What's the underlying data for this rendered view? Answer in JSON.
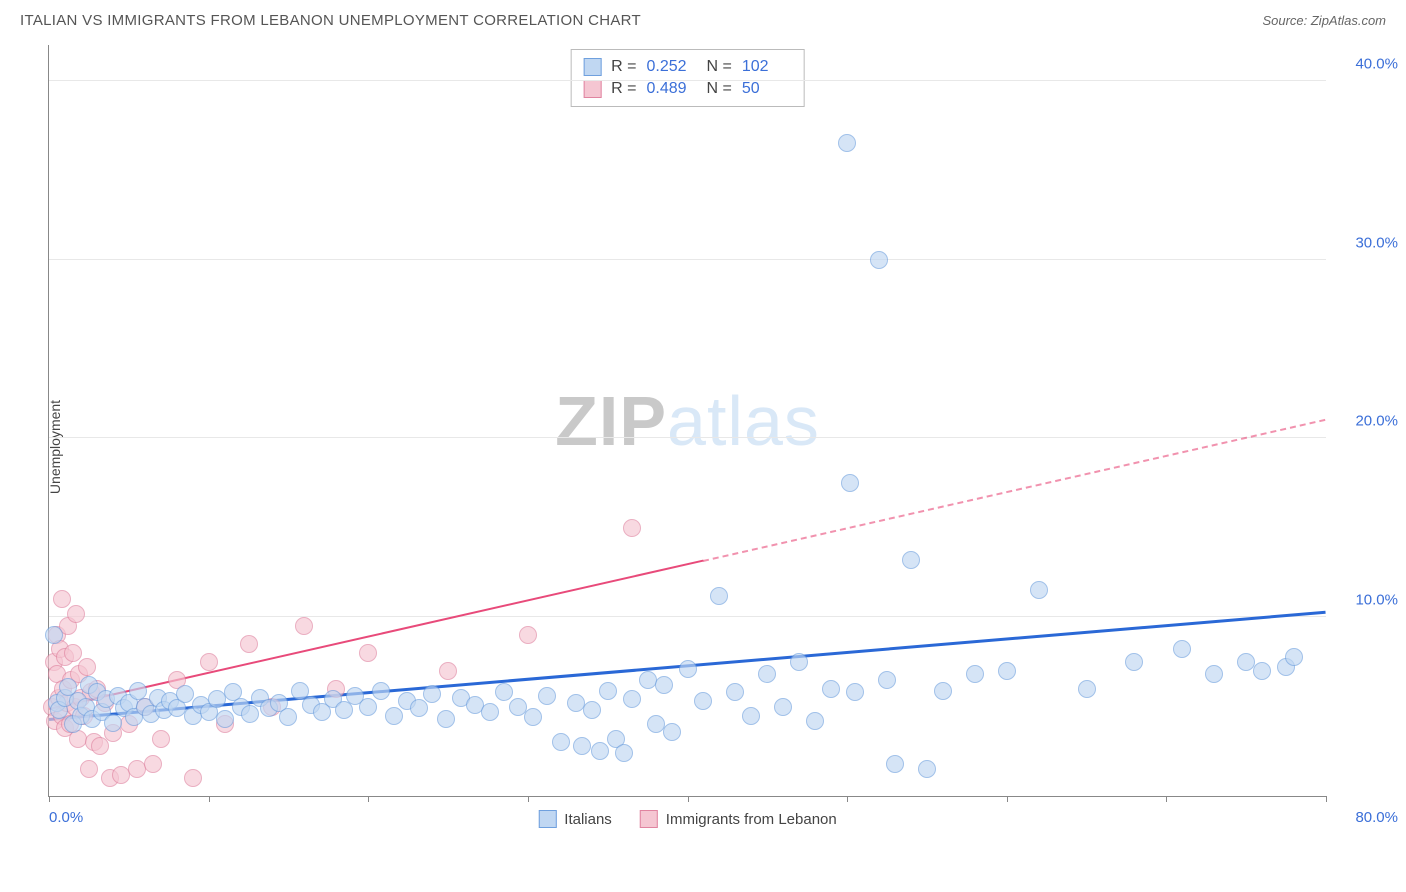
{
  "title": "ITALIAN VS IMMIGRANTS FROM LEBANON UNEMPLOYMENT CORRELATION CHART",
  "source": "Source: ZipAtlas.com",
  "y_axis_label": "Unemployment",
  "watermark_a": "ZIP",
  "watermark_b": "atlas",
  "chart": {
    "type": "scatter-with-regression",
    "background_color": "#ffffff",
    "grid_color": "#e8e8e8",
    "axis_color": "#888888",
    "tick_label_color": "#3b6fd8",
    "tick_fontsize": 15,
    "xlim": [
      0,
      80
    ],
    "ylim": [
      0,
      42
    ],
    "x_ticks": [
      0,
      10,
      20,
      30,
      40,
      50,
      60,
      70,
      80
    ],
    "x_tick_labels": {
      "0": "0.0%",
      "80": "80.0%"
    },
    "y_ticks": [
      10,
      20,
      30,
      40
    ],
    "y_tick_labels": [
      "10.0%",
      "20.0%",
      "30.0%",
      "40.0%"
    ],
    "marker_radius": 9,
    "marker_border_width": 1.2,
    "series": [
      {
        "name": "Italians",
        "legend_label": "Italians",
        "fill": "#c0d7f2",
        "stroke": "#6fa0de",
        "fill_opacity": 0.65,
        "R": "0.252",
        "N": "102",
        "regression": {
          "x1": 0,
          "y1": 4.2,
          "x2": 80,
          "y2": 10.2,
          "color": "#2a68d6",
          "width": 2.5,
          "dash_from_x": null
        },
        "points": [
          [
            0.3,
            9.0
          ],
          [
            0.5,
            5.2
          ],
          [
            0.6,
            4.8
          ],
          [
            1.0,
            5.5
          ],
          [
            1.2,
            6.1
          ],
          [
            1.5,
            4.0
          ],
          [
            1.8,
            5.3
          ],
          [
            2.0,
            4.5
          ],
          [
            2.3,
            5.0
          ],
          [
            2.5,
            6.2
          ],
          [
            2.7,
            4.3
          ],
          [
            3.0,
            5.8
          ],
          [
            3.3,
            4.7
          ],
          [
            3.6,
            5.4
          ],
          [
            4.0,
            4.1
          ],
          [
            4.3,
            5.6
          ],
          [
            4.7,
            4.9
          ],
          [
            5.0,
            5.2
          ],
          [
            5.3,
            4.4
          ],
          [
            5.6,
            5.9
          ],
          [
            6.0,
            5.0
          ],
          [
            6.4,
            4.6
          ],
          [
            6.8,
            5.5
          ],
          [
            7.2,
            4.8
          ],
          [
            7.6,
            5.3
          ],
          [
            8.0,
            4.9
          ],
          [
            8.5,
            5.7
          ],
          [
            9.0,
            4.5
          ],
          [
            9.5,
            5.1
          ],
          [
            10.0,
            4.7
          ],
          [
            10.5,
            5.4
          ],
          [
            11.0,
            4.3
          ],
          [
            11.5,
            5.8
          ],
          [
            12.0,
            5.0
          ],
          [
            12.6,
            4.6
          ],
          [
            13.2,
            5.5
          ],
          [
            13.8,
            4.9
          ],
          [
            14.4,
            5.2
          ],
          [
            15.0,
            4.4
          ],
          [
            15.7,
            5.9
          ],
          [
            16.4,
            5.1
          ],
          [
            17.1,
            4.7
          ],
          [
            17.8,
            5.4
          ],
          [
            18.5,
            4.8
          ],
          [
            19.2,
            5.6
          ],
          [
            20.0,
            5.0
          ],
          [
            20.8,
            5.9
          ],
          [
            21.6,
            4.5
          ],
          [
            22.4,
            5.3
          ],
          [
            23.2,
            4.9
          ],
          [
            24.0,
            5.7
          ],
          [
            24.9,
            4.3
          ],
          [
            25.8,
            5.5
          ],
          [
            26.7,
            5.1
          ],
          [
            27.6,
            4.7
          ],
          [
            28.5,
            5.8
          ],
          [
            29.4,
            5.0
          ],
          [
            30.3,
            4.4
          ],
          [
            31.2,
            5.6
          ],
          [
            32.1,
            3.0
          ],
          [
            33.0,
            5.2
          ],
          [
            33.4,
            2.8
          ],
          [
            34.0,
            4.8
          ],
          [
            34.5,
            2.5
          ],
          [
            35.0,
            5.9
          ],
          [
            35.5,
            3.2
          ],
          [
            36.0,
            2.4
          ],
          [
            36.5,
            5.4
          ],
          [
            37.5,
            6.5
          ],
          [
            38.0,
            4.0
          ],
          [
            38.5,
            6.2
          ],
          [
            39.0,
            3.6
          ],
          [
            40.0,
            7.1
          ],
          [
            41.0,
            5.3
          ],
          [
            42.0,
            11.2
          ],
          [
            43.0,
            5.8
          ],
          [
            44.0,
            4.5
          ],
          [
            45.0,
            6.8
          ],
          [
            46.0,
            5.0
          ],
          [
            47.0,
            7.5
          ],
          [
            48.0,
            4.2
          ],
          [
            49.0,
            6.0
          ],
          [
            50.0,
            36.5
          ],
          [
            50.2,
            17.5
          ],
          [
            50.5,
            5.8
          ],
          [
            52.0,
            30.0
          ],
          [
            52.5,
            6.5
          ],
          [
            53.0,
            1.8
          ],
          [
            54.0,
            13.2
          ],
          [
            55.0,
            1.5
          ],
          [
            56.0,
            5.9
          ],
          [
            58.0,
            6.8
          ],
          [
            60.0,
            7.0
          ],
          [
            62.0,
            11.5
          ],
          [
            65.0,
            6.0
          ],
          [
            68.0,
            7.5
          ],
          [
            71.0,
            8.2
          ],
          [
            73.0,
            6.8
          ],
          [
            75.0,
            7.5
          ],
          [
            76.0,
            7.0
          ],
          [
            77.5,
            7.2
          ],
          [
            78.0,
            7.8
          ]
        ]
      },
      {
        "name": "Immigrants from Lebanon",
        "legend_label": "Immigrants from Lebanon",
        "fill": "#f5c6d2",
        "stroke": "#e084a0",
        "fill_opacity": 0.65,
        "R": "0.489",
        "N": "50",
        "regression": {
          "x1": 0,
          "y1": 4.8,
          "x2": 80,
          "y2": 21.0,
          "color": "#e84a7a",
          "width": 2,
          "dash_from_x": 41
        },
        "points": [
          [
            0.2,
            5.0
          ],
          [
            0.3,
            7.5
          ],
          [
            0.4,
            4.2
          ],
          [
            0.5,
            9.0
          ],
          [
            0.5,
            6.8
          ],
          [
            0.6,
            5.5
          ],
          [
            0.7,
            8.2
          ],
          [
            0.8,
            4.5
          ],
          [
            0.8,
            11.0
          ],
          [
            0.9,
            6.0
          ],
          [
            1.0,
            7.8
          ],
          [
            1.0,
            3.8
          ],
          [
            1.1,
            5.2
          ],
          [
            1.2,
            9.5
          ],
          [
            1.3,
            4.0
          ],
          [
            1.4,
            6.5
          ],
          [
            1.5,
            8.0
          ],
          [
            1.6,
            5.0
          ],
          [
            1.7,
            10.2
          ],
          [
            1.8,
            3.2
          ],
          [
            1.9,
            6.8
          ],
          [
            2.0,
            5.5
          ],
          [
            2.2,
            4.5
          ],
          [
            2.4,
            7.2
          ],
          [
            2.5,
            1.5
          ],
          [
            2.6,
            5.8
          ],
          [
            2.8,
            3.0
          ],
          [
            3.0,
            6.0
          ],
          [
            3.2,
            2.8
          ],
          [
            3.5,
            5.2
          ],
          [
            3.8,
            1.0
          ],
          [
            4.0,
            3.5
          ],
          [
            4.5,
            1.2
          ],
          [
            5.0,
            4.0
          ],
          [
            5.5,
            1.5
          ],
          [
            6.0,
            5.0
          ],
          [
            6.5,
            1.8
          ],
          [
            7.0,
            3.2
          ],
          [
            8.0,
            6.5
          ],
          [
            9.0,
            1.0
          ],
          [
            10.0,
            7.5
          ],
          [
            11.0,
            4.0
          ],
          [
            12.5,
            8.5
          ],
          [
            14.0,
            5.0
          ],
          [
            16.0,
            9.5
          ],
          [
            18.0,
            6.0
          ],
          [
            20.0,
            8.0
          ],
          [
            25.0,
            7.0
          ],
          [
            30.0,
            9.0
          ],
          [
            36.5,
            15.0
          ]
        ]
      }
    ],
    "stat_legend": {
      "R_label": "R =",
      "N_label": "N ="
    }
  }
}
